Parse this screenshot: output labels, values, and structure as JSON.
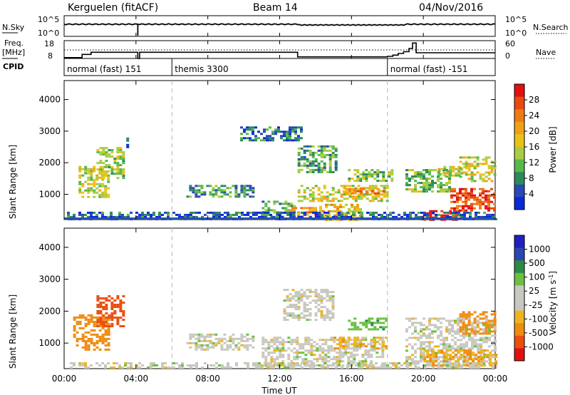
{
  "header": {
    "station": "Kerguelen (fitACF)",
    "beam": "Beam 14",
    "date": "04/Nov/2016"
  },
  "upper_panel": {
    "left_label": "N.Sky",
    "right_label": "N.Search",
    "left_ticks": [
      "10^5",
      "10^0"
    ],
    "right_ticks": [
      "10^5",
      "10^0"
    ]
  },
  "freq_panel": {
    "left_label_1": "Freq.",
    "left_label_2": "[MHz]",
    "right_label": "Nave",
    "left_ticks": [
      "18",
      "8"
    ],
    "right_ticks": [
      "60",
      "0"
    ],
    "freq_steps": [
      [
        0.0,
        8.5
      ],
      [
        1.0,
        10.3
      ],
      [
        1.5,
        11.5
      ],
      [
        4.0,
        11.5
      ],
      [
        4.1,
        8.0
      ],
      [
        4.2,
        11.5
      ],
      [
        13.0,
        8.9
      ],
      [
        18.0,
        9.2
      ],
      [
        18.3,
        9.9
      ],
      [
        18.6,
        10.8
      ],
      [
        18.9,
        11.8
      ],
      [
        19.2,
        13.6
      ],
      [
        19.4,
        16.7
      ],
      [
        19.6,
        11.2
      ],
      [
        24.0,
        11.2
      ]
    ]
  },
  "cpid": {
    "label": "CPID",
    "programs": [
      {
        "name": "normal (fast) 151",
        "start": 0
      },
      {
        "name": "themis 3300",
        "start": 6
      },
      {
        "name": "normal (fast) -151",
        "start": 18
      }
    ]
  },
  "colors": {
    "power": [
      "#0a2ad8",
      "#2a48b8",
      "#2c8a5a",
      "#56b848",
      "#a8cc44",
      "#e8c218",
      "#f0a018",
      "#ef7a12",
      "#ea4a10",
      "#e01010"
    ],
    "velocity": [
      "#2020c0",
      "#2a48b0",
      "#2c8a48",
      "#6ac040",
      "#c8c8c0",
      "#c8c8c0",
      "#ecb420",
      "#ef8c12",
      "#ea5010",
      "#e01010"
    ],
    "dash": "#b4b4b4",
    "ground": "#2a4fb0"
  },
  "chart_data": [
    {
      "type": "heatmap",
      "title": "Power",
      "ylabel": "Slant Range [km]",
      "xlabel": "Time UT",
      "xlim": [
        0,
        24
      ],
      "ylim": [
        200,
        4600
      ],
      "x_ticks": [
        "00:00",
        "04:00",
        "08:00",
        "12:00",
        "16:00",
        "20:00",
        "00:00"
      ],
      "y_ticks": [
        1000,
        2000,
        3000,
        4000
      ],
      "colorbar_label": "Power [dB]",
      "colorbar_ticks": [
        28,
        24,
        20,
        16,
        12,
        8,
        4
      ],
      "colorbar_range": [
        0,
        30
      ],
      "patches": [
        {
          "t": [
            0.8,
            2.5
          ],
          "r": [
            900,
            1900
          ],
          "v": 14
        },
        {
          "t": [
            1.8,
            3.3
          ],
          "r": [
            1500,
            2500
          ],
          "v": 13
        },
        {
          "t": [
            3.3,
            3.6
          ],
          "r": [
            2500,
            2800
          ],
          "v": 7
        },
        {
          "t": [
            6.8,
            10.5
          ],
          "r": [
            900,
            1300
          ],
          "v": 8
        },
        {
          "t": [
            9.8,
            13.2
          ],
          "r": [
            2700,
            3150
          ],
          "v": 6
        },
        {
          "t": [
            11.0,
            12.8
          ],
          "r": [
            250,
            800
          ],
          "v": 10
        },
        {
          "t": [
            12.5,
            14.0
          ],
          "r": [
            300,
            600
          ],
          "v": 22
        },
        {
          "t": [
            13.0,
            15.2
          ],
          "r": [
            1700,
            2550
          ],
          "v": 10
        },
        {
          "t": [
            13.0,
            18.0
          ],
          "r": [
            800,
            1300
          ],
          "v": 15
        },
        {
          "t": [
            14.2,
            16.5
          ],
          "r": [
            200,
            700
          ],
          "v": 18
        },
        {
          "t": [
            15.5,
            17.8
          ],
          "r": [
            1000,
            1200
          ],
          "v": 21
        },
        {
          "t": [
            15.8,
            18.3
          ],
          "r": [
            1400,
            1800
          ],
          "v": 12
        },
        {
          "t": [
            19.0,
            21.5
          ],
          "r": [
            1100,
            1800
          ],
          "v": 11
        },
        {
          "t": [
            20.8,
            22.3
          ],
          "r": [
            1600,
            1900
          ],
          "v": 14
        },
        {
          "t": [
            21.5,
            24.0
          ],
          "r": [
            500,
            1200
          ],
          "v": 26
        },
        {
          "t": [
            20.0,
            22.0
          ],
          "r": [
            200,
            500
          ],
          "v": 29
        },
        {
          "t": [
            22.0,
            24.0
          ],
          "r": [
            1400,
            2200
          ],
          "v": 15
        },
        {
          "t": [
            0.0,
            24.0
          ],
          "r": [
            200,
            450
          ],
          "v": 5
        }
      ]
    },
    {
      "type": "heatmap",
      "title": "Velocity",
      "ylabel": "Slant Range [km]",
      "xlabel": "Time UT",
      "xlim": [
        0,
        24
      ],
      "ylim": [
        200,
        4600
      ],
      "x_ticks": [
        "00:00",
        "04:00",
        "08:00",
        "12:00",
        "16:00",
        "20:00",
        "00:00"
      ],
      "y_ticks": [
        1000,
        2000,
        3000,
        4000
      ],
      "colorbar_label": "Velocity [m s^-1]",
      "colorbar_ticks": [
        "1000",
        "500",
        "100",
        "25",
        "-25",
        "-100",
        "-500",
        "-1000"
      ],
      "patches": [
        {
          "t": [
            0.5,
            2.5
          ],
          "r": [
            800,
            1900
          ],
          "v": -300
        },
        {
          "t": [
            1.8,
            3.3
          ],
          "r": [
            1500,
            2500
          ],
          "v": -600
        },
        {
          "t": [
            6.8,
            10.5
          ],
          "r": [
            800,
            1300
          ],
          "v": 0
        },
        {
          "t": [
            11.0,
            17.8
          ],
          "r": [
            300,
            1200
          ],
          "v": 0
        },
        {
          "t": [
            12.2,
            15.0
          ],
          "r": [
            1700,
            2700
          ],
          "v": 0
        },
        {
          "t": [
            15.0,
            18.0
          ],
          "r": [
            800,
            1200
          ],
          "v": -80
        },
        {
          "t": [
            15.8,
            18.0
          ],
          "r": [
            1400,
            1800
          ],
          "v": 80
        },
        {
          "t": [
            19.0,
            24.0
          ],
          "r": [
            300,
            1800
          ],
          "v": 0
        },
        {
          "t": [
            20.0,
            24.0
          ],
          "r": [
            300,
            800
          ],
          "v": -100
        },
        {
          "t": [
            22.0,
            24.0
          ],
          "r": [
            1300,
            2000
          ],
          "v": -150
        },
        {
          "t": [
            0.0,
            24.0
          ],
          "r": [
            200,
            400
          ],
          "v": 0
        }
      ]
    }
  ]
}
